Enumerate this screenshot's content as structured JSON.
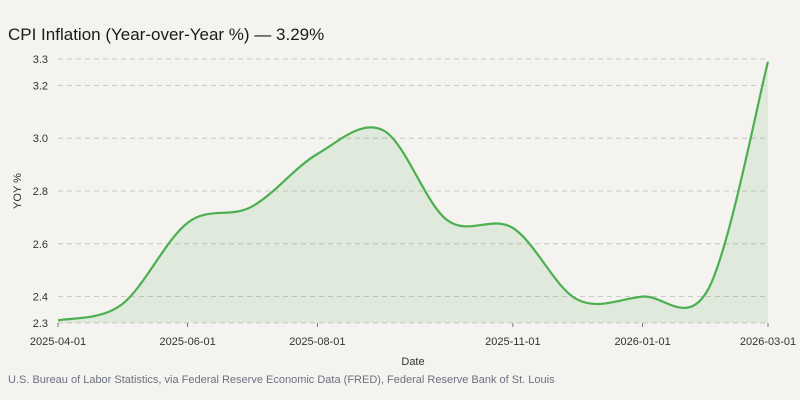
{
  "chart_data": {
    "type": "area",
    "title": "CPI Inflation (Year-over-Year %) — 3.29%",
    "xlabel": "Date",
    "ylabel": "YOY %",
    "x": [
      "2025-04-01",
      "2025-05-01",
      "2025-06-01",
      "2025-07-01",
      "2025-08-01",
      "2025-09-01",
      "2025-10-01",
      "2025-11-01",
      "2025-12-01",
      "2026-01-01",
      "2026-02-01",
      "2026-03-01"
    ],
    "values": [
      2.31,
      2.37,
      2.68,
      2.74,
      2.94,
      3.03,
      2.69,
      2.66,
      2.39,
      2.4,
      2.43,
      3.29
    ],
    "x_ticks": [
      "2025-04-01",
      "2025-06-01",
      "2025-08-01",
      "2025-11-01",
      "2026-01-01",
      "2026-03-01"
    ],
    "y_ticks": [
      "2.3",
      "2.4",
      "2.6",
      "2.8",
      "3.0",
      "3.2",
      "3.3"
    ],
    "ylim": [
      2.3,
      3.3
    ],
    "grid": true,
    "colors": {
      "line": "#4caf50",
      "fill": "#4caf50",
      "grid": "#bdbdbd"
    }
  },
  "footer": {
    "source": "U.S. Bureau of Labor Statistics, via Federal Reserve Economic Data (FRED), Federal Reserve Bank of St. Louis"
  }
}
